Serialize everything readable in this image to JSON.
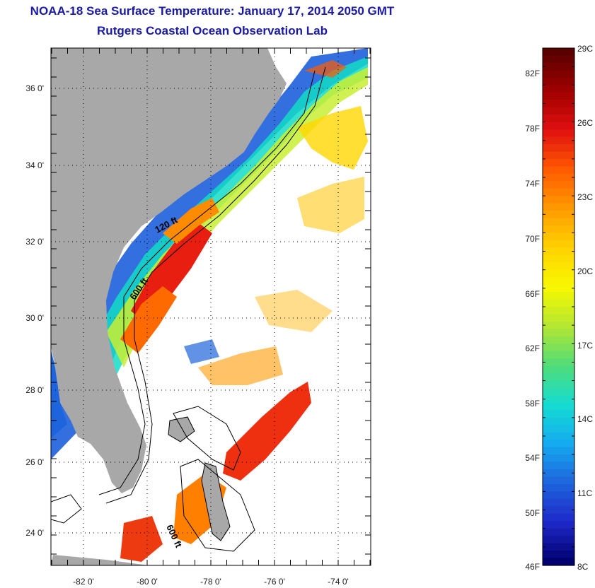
{
  "header": {
    "title": "NOAA-18 Sea Surface Temperature:  January 17, 2014 2050 GMT",
    "subtitle": "Rutgers Coastal Ocean Observation Lab"
  },
  "map": {
    "lat_labels": [
      "36 0'",
      "34 0'",
      "32 0'",
      "30 0'",
      "28 0'",
      "26 0'",
      "24 0'"
    ],
    "lon_labels": [
      "-82 0'",
      "-80 0'",
      "-78 0'",
      "-76 0'",
      "-74 0'"
    ],
    "contour_labels": [
      "120 ft",
      "600 ft",
      "600 ft"
    ]
  },
  "colorbar": {
    "fahrenheit_labels": [
      "82F",
      "78F",
      "74F",
      "70F",
      "66F",
      "62F",
      "58F",
      "54F",
      "50F",
      "46F"
    ],
    "celsius_labels": [
      "29C",
      "26C",
      "23C",
      "20C",
      "17C",
      "14C",
      "11C",
      "8C"
    ],
    "colors": [
      "#5a0000",
      "#a00000",
      "#e01010",
      "#ff5a00",
      "#ff9a00",
      "#ffd200",
      "#f8f800",
      "#b4e632",
      "#50dc78",
      "#14dcd2",
      "#14aaf0",
      "#1e64dc",
      "#1e28c8",
      "#00006e"
    ]
  },
  "colors": {
    "land": "#a8a8a8",
    "title": "#1a1aa6"
  }
}
